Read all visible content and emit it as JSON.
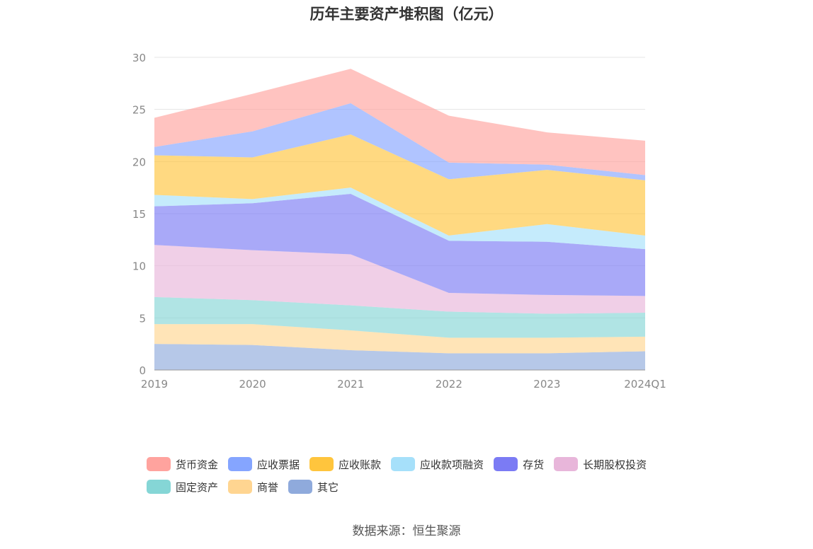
{
  "title": "历年主要资产堆积图（亿元）",
  "source": "数据来源：恒生聚源",
  "chart_data": {
    "type": "area",
    "stacked": true,
    "title": "历年主要资产堆积图（亿元）",
    "categories": [
      "2019",
      "2020",
      "2021",
      "2022",
      "2023",
      "2024Q1"
    ],
    "ylim": [
      0,
      30
    ],
    "yticks": [
      0,
      5,
      10,
      15,
      20,
      25,
      30
    ],
    "grid": true,
    "legend_position": "bottom",
    "series": [
      {
        "name": "其它",
        "color": "#8FAADC",
        "values": [
          2.5,
          2.4,
          1.9,
          1.6,
          1.6,
          1.8
        ]
      },
      {
        "name": "商誉",
        "color": "#FFD591",
        "values": [
          1.9,
          2.0,
          1.9,
          1.5,
          1.5,
          1.4
        ]
      },
      {
        "name": "固定资产",
        "color": "#85D6D6",
        "values": [
          2.6,
          2.3,
          2.4,
          2.5,
          2.3,
          2.3
        ]
      },
      {
        "name": "长期股权投资",
        "color": "#E8B6DA",
        "values": [
          5.0,
          4.8,
          4.9,
          1.8,
          1.8,
          1.6
        ]
      },
      {
        "name": "存货",
        "color": "#7B7BF4",
        "values": [
          3.7,
          4.5,
          5.8,
          5.0,
          5.1,
          4.5
        ]
      },
      {
        "name": "应收款项融资",
        "color": "#A6E0FA",
        "values": [
          1.1,
          0.4,
          0.6,
          0.5,
          1.7,
          1.3
        ]
      },
      {
        "name": "应收账款",
        "color": "#FFC53D",
        "values": [
          3.8,
          4.0,
          5.1,
          5.4,
          5.2,
          5.3
        ]
      },
      {
        "name": "应收票据",
        "color": "#85A5FF",
        "values": [
          0.8,
          2.5,
          3.0,
          1.6,
          0.5,
          0.5
        ]
      },
      {
        "name": "货币资金",
        "color": "#FFA39E",
        "values": [
          2.8,
          3.6,
          3.3,
          4.5,
          3.1,
          3.3
        ]
      }
    ],
    "legend_order": [
      "货币资金",
      "应收票据",
      "应收账款",
      "应收款项融资",
      "存货",
      "长期股权投资",
      "固定资产",
      "商誉",
      "其它"
    ]
  }
}
